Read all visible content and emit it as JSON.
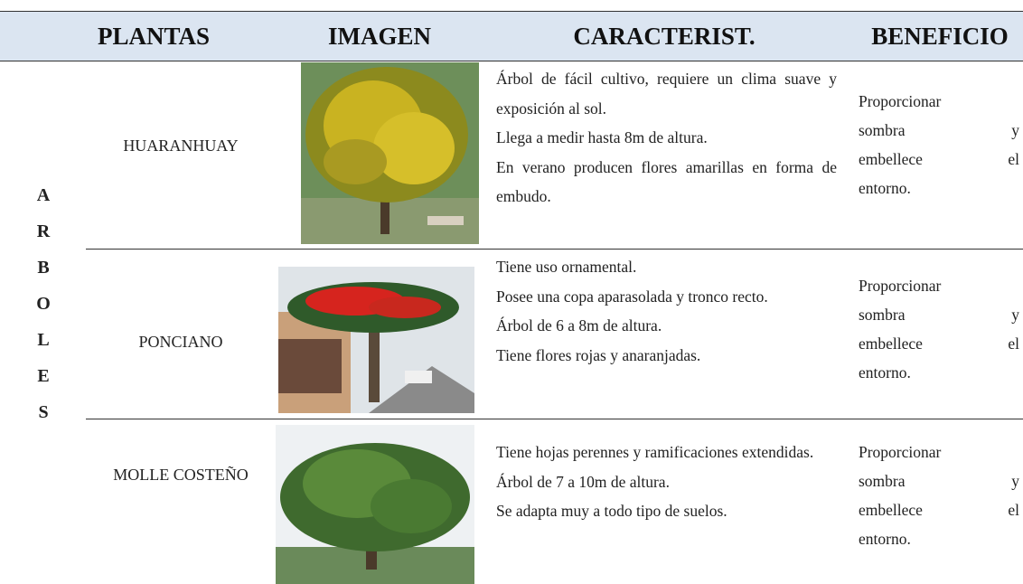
{
  "header": [
    "PLANTAS",
    "IMAGEN",
    "CARACTERIST.",
    "BENEFICIO"
  ],
  "group": "ARBOLES",
  "rows": [
    {
      "name": "HUARANHUAY",
      "features": [
        "Árbol de fácil cultivo, requiere un clima suave y exposición al sol.",
        "Llega a medir hasta 8m de altura.",
        "En verano producen flores amarillas en forma de embudo."
      ],
      "benefit": [
        [
          "Proporcionar"
        ],
        [
          "sombra",
          "y"
        ],
        [
          "embellece",
          "el"
        ],
        [
          "entorno."
        ]
      ]
    },
    {
      "name": "PONCIANO",
      "features": [
        "Tiene uso ornamental.",
        "Posee una copa aparasolada y tronco recto.",
        "Árbol de 6 a 8m de altura.",
        "Tiene flores rojas y anaranjadas."
      ],
      "benefit": [
        [
          "Proporcionar"
        ],
        [
          "sombra",
          "y"
        ],
        [
          "embellece",
          "el"
        ],
        [
          "entorno."
        ]
      ]
    },
    {
      "name": "MOLLE COSTEÑO",
      "features": [
        "Tiene hojas perennes y ramificaciones extendidas.",
        "Árbol de 7 a 10m de altura.",
        "Se adapta muy a todo tipo de suelos."
      ],
      "benefit": [
        [
          "Proporcionar"
        ],
        [
          "sombra",
          "y"
        ],
        [
          "embellece",
          "el"
        ],
        [
          "entorno."
        ]
      ]
    }
  ]
}
